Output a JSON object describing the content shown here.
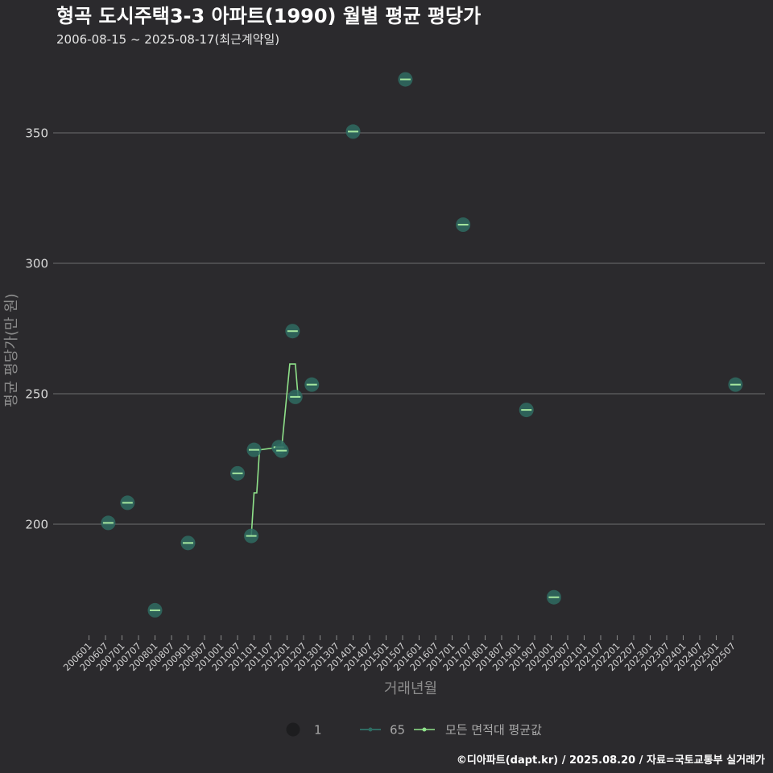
{
  "header": {
    "title": "형곡 도시주택3-3 아파트(1990) 월별 평균 평당가",
    "subtitle": "2006-08-15 ~ 2025-08-17(최근계약일)"
  },
  "footer": {
    "credit": "©디아파트(dapt.kr) / 2025.08.20 / 자료=국토교통부 실거래가"
  },
  "legend": {
    "size_label": "1",
    "series_label": "65",
    "avg_label": "모든 면적대 평균값"
  },
  "colors": {
    "background": "#2b2a2d",
    "point": "#2f6b62",
    "tick": "#a6e8a0",
    "avg_line": "#8fe28a",
    "grid": "#6e6e6e"
  },
  "chart_data": {
    "type": "scatter",
    "title": "형곡 도시주택3-3 아파트(1990) 월별 평균 평당가",
    "xlabel": "거래년월",
    "ylabel": "평균 평당가(만 원)",
    "ylim": [
      158,
      385
    ],
    "yticks": [
      200,
      250,
      300,
      350
    ],
    "x_ticks": [
      "200601",
      "200607",
      "200701",
      "200707",
      "200801",
      "200807",
      "200901",
      "200907",
      "201001",
      "201007",
      "201101",
      "201107",
      "201201",
      "201207",
      "201301",
      "201307",
      "201401",
      "201407",
      "201501",
      "201507",
      "201601",
      "201607",
      "201701",
      "201707",
      "201801",
      "201807",
      "201901",
      "201907",
      "202001",
      "202007",
      "202101",
      "202107",
      "202201",
      "202207",
      "202301",
      "202307",
      "202401",
      "202407",
      "202501",
      "202507"
    ],
    "series": [
      {
        "name": "65",
        "points": [
          {
            "x": "200608",
            "y": 200.5
          },
          {
            "x": "200703",
            "y": 208.2
          },
          {
            "x": "200801",
            "y": 167.0
          },
          {
            "x": "200901",
            "y": 192.8
          },
          {
            "x": "201007",
            "y": 219.5
          },
          {
            "x": "201012",
            "y": 195.5
          },
          {
            "x": "201101",
            "y": 228.5
          },
          {
            "x": "201110",
            "y": 229.5
          },
          {
            "x": "201111",
            "y": 228.2
          },
          {
            "x": "201203",
            "y": 274.0
          },
          {
            "x": "201204",
            "y": 248.8
          },
          {
            "x": "201210",
            "y": 253.5
          },
          {
            "x": "201401",
            "y": 350.5
          },
          {
            "x": "201508",
            "y": 370.5
          },
          {
            "x": "201705",
            "y": 314.8
          },
          {
            "x": "201904",
            "y": 243.8
          },
          {
            "x": "202002",
            "y": 172.0
          },
          {
            "x": "202508",
            "y": 253.5
          }
        ]
      },
      {
        "name": "모든 면적대 평균값",
        "type": "line",
        "points": [
          {
            "x": "201012",
            "y": 195.5
          },
          {
            "x": "201101",
            "y": 212.0
          },
          {
            "x": "201102",
            "y": 212.0
          },
          {
            "x": "201103",
            "y": 228.5
          },
          {
            "x": "201110",
            "y": 229.5
          },
          {
            "x": "201111",
            "y": 228.9
          },
          {
            "x": "201202",
            "y": 261.4
          },
          {
            "x": "201203",
            "y": 261.4
          },
          {
            "x": "201204",
            "y": 261.4
          },
          {
            "x": "201205",
            "y": 248.8
          }
        ]
      }
    ]
  }
}
